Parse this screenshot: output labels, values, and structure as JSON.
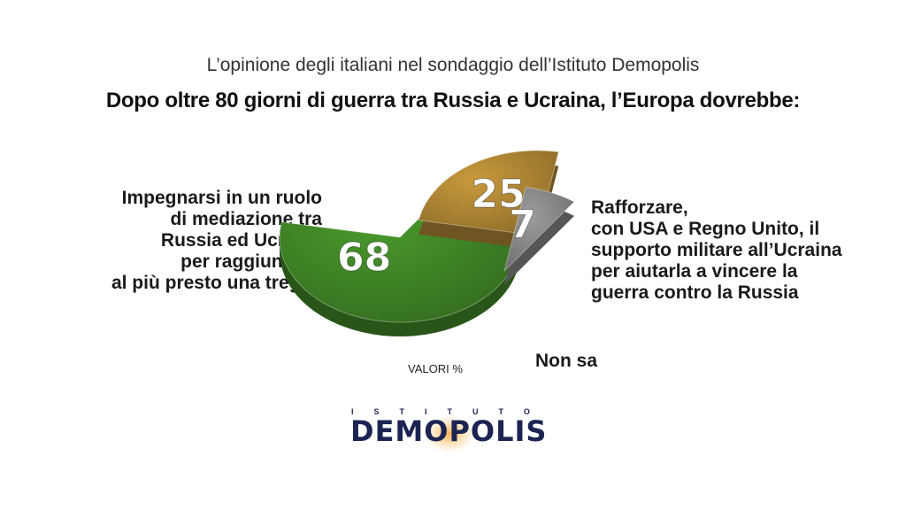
{
  "header": {
    "subtitle": "L’opinione degli italiani nel sondaggio dell’Istituto Demopolis",
    "title": "Dopo oltre 80 giorni di guerra tra Russia e Ucraina, l’Europa dovrebbe:"
  },
  "labels": {
    "left": [
      "Impegnarsi in un ruolo",
      "di mediazione tra",
      "Russia ed Ucraina",
      "per raggiungere",
      "al più presto una tregua"
    ],
    "right": [
      "Rafforzare,",
      "con USA e Regno Unito, il",
      "supporto militare all’Ucraina",
      "per aiutarla a vincere la",
      "guerra contro la Russia"
    ],
    "bottom": "Non sa"
  },
  "valori_note": "VALORI %",
  "chart_data": {
    "type": "pie",
    "unit": "%",
    "slices": [
      {
        "value": 68,
        "label": "68",
        "color": "#4a9a2c"
      },
      {
        "value": 25,
        "label": "25",
        "color": "#c99a3c"
      },
      {
        "value": 7,
        "label": "7",
        "color": "#9c9c9c"
      }
    ]
  },
  "logo": {
    "top_text": "ISTITUTO",
    "main_text": "DEMOPOLIS",
    "color": "#1b2452",
    "accent": "#f0a840"
  }
}
